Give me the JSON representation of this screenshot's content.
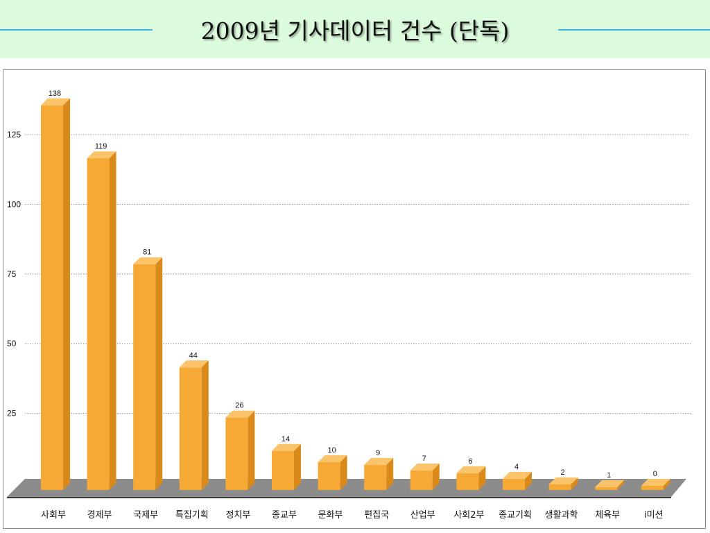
{
  "title": "2009년 기사데이터 건수 (단독)",
  "chart_data": {
    "type": "bar",
    "title": "2009년 기사데이터 건수 (단독)",
    "xlabel": "",
    "ylabel": "",
    "categories": [
      "사회부",
      "경제부",
      "국제부",
      "특집기획",
      "정치부",
      "종교부",
      "문화부",
      "편집국",
      "산업부",
      "사회2부",
      "종교기획",
      "생활과학",
      "체육부",
      "i미션"
    ],
    "values": [
      138,
      119,
      81,
      44,
      26,
      14,
      10,
      9,
      7,
      6,
      4,
      2,
      1,
      0
    ],
    "y_ticks": [
      25,
      50,
      75,
      100,
      125
    ],
    "ylim": [
      0,
      140
    ],
    "grid": true,
    "legend": "none",
    "bar_color": "#f7a936"
  }
}
